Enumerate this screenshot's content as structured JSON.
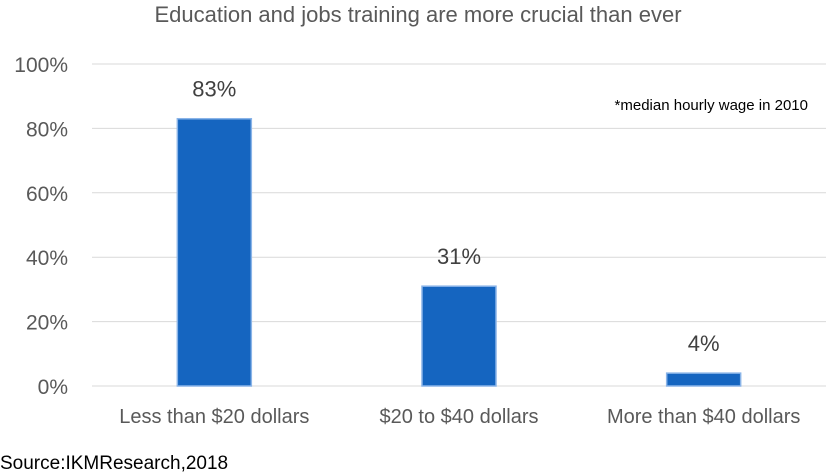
{
  "chart_data": {
    "type": "bar",
    "title": "Education and jobs training are more crucial than ever",
    "categories": [
      "Less than $20 dollars",
      "$20 to $40 dollars",
      "More than $40 dollars"
    ],
    "values": [
      83,
      31,
      4
    ],
    "value_labels": [
      "83%",
      "31%",
      "4%"
    ],
    "ylim": [
      0,
      100
    ],
    "yticks": [
      0,
      20,
      40,
      60,
      80,
      100
    ],
    "ytick_labels": [
      "0%",
      "20%",
      "40%",
      "60%",
      "80%",
      "100%"
    ],
    "grid": true,
    "annotation": "*median hourly wage in 2010",
    "bar_color": "#1565c0",
    "bar_border_color": "#8ab4e8"
  },
  "source": "Source:IKMResearch,2018"
}
